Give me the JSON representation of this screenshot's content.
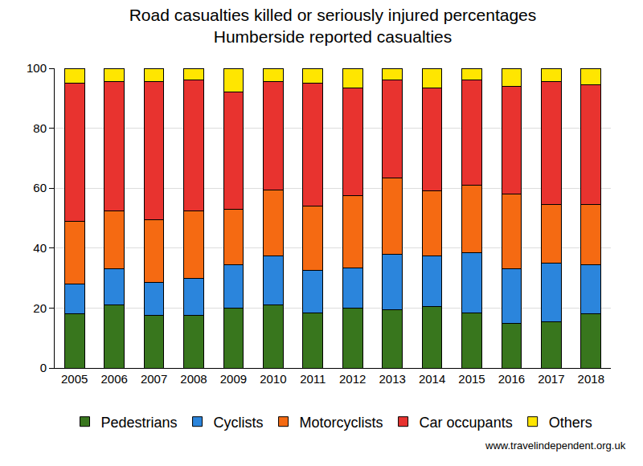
{
  "chart_data": {
    "type": "bar",
    "title": "Road casualties killed or seriously injured percentages",
    "subtitle": "Humberside reported casualties",
    "categories": [
      "2005",
      "2006",
      "2007",
      "2008",
      "2009",
      "2010",
      "2011",
      "2012",
      "2013",
      "2014",
      "2015",
      "2016",
      "2017",
      "2018"
    ],
    "series": [
      {
        "name": "Pedestrians",
        "color": "#38761d",
        "values": [
          18,
          21,
          17.5,
          17.5,
          20,
          21,
          18.5,
          20,
          19.5,
          20.5,
          18.5,
          15,
          15.5,
          18
        ]
      },
      {
        "name": "Cyclists",
        "color": "#2b85dc",
        "values": [
          10,
          12,
          11,
          12.5,
          14.5,
          16.5,
          14,
          13.5,
          18.5,
          17,
          20,
          18,
          19.5,
          16.5
        ]
      },
      {
        "name": "Motorcyclists",
        "color": "#f56a12",
        "values": [
          21,
          19.5,
          21,
          22.5,
          18.5,
          22,
          21.5,
          24,
          25.5,
          21.5,
          22.5,
          25,
          19.5,
          20
        ]
      },
      {
        "name": "Car occupants",
        "color": "#e8332f",
        "values": [
          46,
          43,
          46,
          43.5,
          39,
          36,
          41,
          36,
          32.5,
          34.5,
          35,
          36,
          41,
          40
        ]
      },
      {
        "name": "Others",
        "color": "#ffe600",
        "values": [
          5,
          4.5,
          4.5,
          4,
          8,
          4.5,
          5,
          6.5,
          4,
          6.5,
          4,
          6,
          4.5,
          5.5
        ]
      }
    ],
    "ylim": [
      0,
      100
    ],
    "yticks": [
      0,
      20,
      40,
      60,
      80,
      100
    ],
    "grid": true,
    "stacked": true,
    "legend": "bottom",
    "annotations": [
      "www.travelindependent.org.uk"
    ]
  }
}
